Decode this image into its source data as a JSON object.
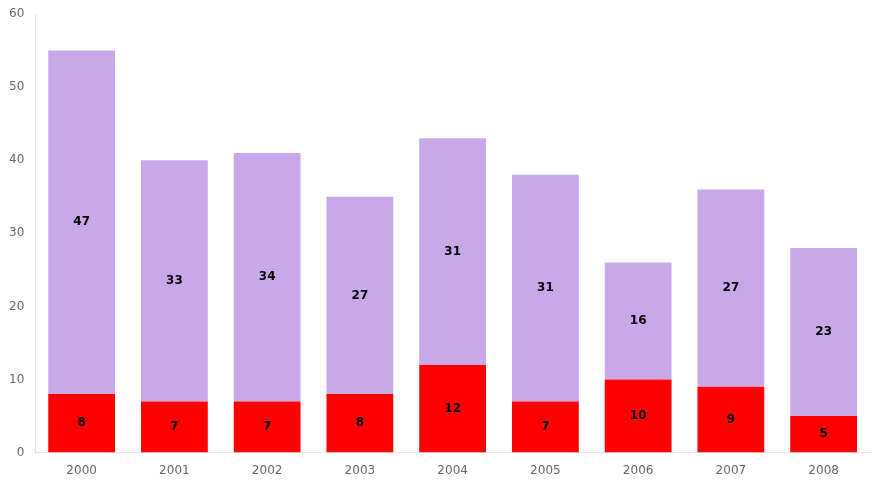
{
  "chart_data": {
    "type": "bar",
    "categories": [
      "2000",
      "2001",
      "2002",
      "2003",
      "2004",
      "2005",
      "2006",
      "2007",
      "2008"
    ],
    "series": [
      {
        "color": "#FF0000",
        "values": [
          8,
          7,
          7,
          8,
          12,
          7,
          10,
          9,
          5
        ]
      },
      {
        "color": "#C8A8E8",
        "values": [
          47,
          33,
          34,
          27,
          31,
          31,
          16,
          27,
          23
        ]
      }
    ],
    "stacked": true,
    "data_labels": true,
    "ylim": [
      0,
      60
    ],
    "yticks": [
      0,
      10,
      20,
      30,
      40,
      50,
      60
    ],
    "grid": false
  }
}
